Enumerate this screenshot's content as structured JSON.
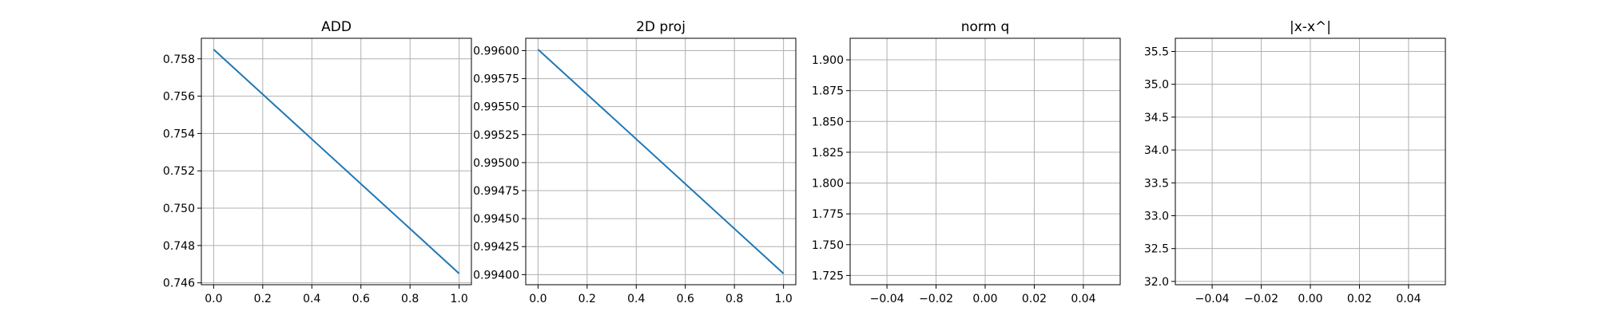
{
  "chart_data": [
    {
      "type": "line",
      "title": "ADD",
      "xlabel": "",
      "ylabel": "",
      "xlim": [
        -0.05,
        1.05
      ],
      "ylim": [
        0.7459,
        0.7591
      ],
      "xticks": [
        0.0,
        0.2,
        0.4,
        0.6,
        0.8,
        1.0
      ],
      "xtick_labels": [
        "0.0",
        "0.2",
        "0.4",
        "0.6",
        "0.8",
        "1.0"
      ],
      "yticks": [
        0.746,
        0.748,
        0.75,
        0.752,
        0.754,
        0.756,
        0.758
      ],
      "ytick_labels": [
        "0.746",
        "0.748",
        "0.750",
        "0.752",
        "0.754",
        "0.756",
        "0.758"
      ],
      "grid": true,
      "series": [
        {
          "x": [
            0,
            1
          ],
          "values": [
            0.7585,
            0.7465
          ]
        }
      ]
    },
    {
      "type": "line",
      "title": "2D proj",
      "xlabel": "",
      "ylabel": "",
      "xlim": [
        -0.05,
        1.05
      ],
      "ylim": [
        0.99391,
        0.99611
      ],
      "xticks": [
        0.0,
        0.2,
        0.4,
        0.6,
        0.8,
        1.0
      ],
      "xtick_labels": [
        "0.0",
        "0.2",
        "0.4",
        "0.6",
        "0.8",
        "1.0"
      ],
      "yticks": [
        0.994,
        0.99425,
        0.9945,
        0.99475,
        0.995,
        0.99525,
        0.9955,
        0.99575,
        0.996
      ],
      "ytick_labels": [
        "0.99400",
        "0.99425",
        "0.99450",
        "0.99475",
        "0.99500",
        "0.99525",
        "0.99550",
        "0.99575",
        "0.99600"
      ],
      "grid": true,
      "series": [
        {
          "x": [
            0,
            1
          ],
          "values": [
            0.99601,
            0.99401
          ]
        }
      ]
    },
    {
      "type": "line",
      "title": "norm q",
      "xlabel": "",
      "ylabel": "",
      "xlim": [
        -0.055,
        0.055
      ],
      "ylim": [
        1.7175,
        1.9175
      ],
      "xticks": [
        -0.04,
        -0.02,
        0.0,
        0.02,
        0.04
      ],
      "xtick_labels": [
        "−0.04",
        "−0.02",
        "0.00",
        "0.02",
        "0.04"
      ],
      "yticks": [
        1.725,
        1.75,
        1.775,
        1.8,
        1.825,
        1.85,
        1.875,
        1.9
      ],
      "ytick_labels": [
        "1.725",
        "1.750",
        "1.775",
        "1.800",
        "1.825",
        "1.850",
        "1.875",
        "1.900"
      ],
      "grid": true,
      "series": []
    },
    {
      "type": "line",
      "title": "|x-x^|",
      "xlabel": "",
      "ylabel": "",
      "xlim": [
        -0.055,
        0.055
      ],
      "ylim": [
        31.95,
        35.7
      ],
      "xticks": [
        -0.04,
        -0.02,
        0.0,
        0.02,
        0.04
      ],
      "xtick_labels": [
        "−0.04",
        "−0.02",
        "0.00",
        "0.02",
        "0.04"
      ],
      "yticks": [
        32.0,
        32.5,
        33.0,
        33.5,
        34.0,
        34.5,
        35.0,
        35.5
      ],
      "ytick_labels": [
        "32.0",
        "32.5",
        "33.0",
        "33.5",
        "34.0",
        "34.5",
        "35.0",
        "35.5"
      ],
      "grid": true,
      "series": []
    }
  ],
  "colors": {
    "series": "#1f77b4",
    "grid": "#b0b0b0",
    "axes": "#000000",
    "background": "#ffffff"
  }
}
